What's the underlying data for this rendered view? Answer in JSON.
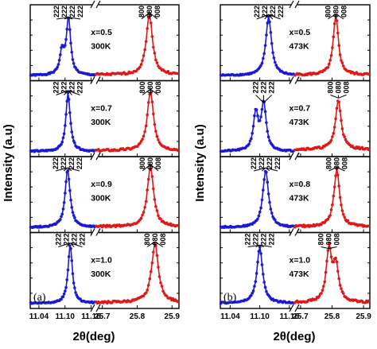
{
  "chart_data": {
    "type": "line",
    "ylabel": "Intensity (a.u)",
    "colors": {
      "low_2theta": "#1a1ad6",
      "high_2theta": "#e01818"
    },
    "panels": [
      {
        "tag": "(a)",
        "xlabel": "2θ(deg)",
        "x_segments": [
          {
            "range": [
              11.02,
              11.17
            ],
            "ticks": [
              "11.04",
              "11.10",
              "11.16"
            ],
            "tick_values": [
              11.04,
              11.1,
              11.16
            ]
          },
          {
            "range": [
              25.68,
              25.92
            ],
            "ticks": [
              "25.7",
              "25.8",
              "25.9"
            ],
            "tick_values": [
              25.7,
              25.8,
              25.9
            ]
          }
        ],
        "subplots": [
          {
            "composition": "x=0.5",
            "temperature": "300K",
            "blue_peaks": [
              {
                "center": 11.093,
                "height": 0.33,
                "width": 0.006
              },
              {
                "center": 11.108,
                "height": 0.82,
                "width": 0.006
              }
            ],
            "blue_baseline": 0.03,
            "red_peaks": [
              {
                "center": 25.835,
                "height": 0.88,
                "width": 0.011
              }
            ],
            "red_baseline": 0.04,
            "labels_left": [
              "222",
              "222",
              "222",
              "222"
            ],
            "labels_right": [
              "800",
              "080",
              "008"
            ]
          },
          {
            "composition": "x=0.7",
            "temperature": "300K",
            "blue_peaks": [
              {
                "center": 11.107,
                "height": 0.86,
                "width": 0.006
              }
            ],
            "blue_baseline": 0.03,
            "red_peaks": [
              {
                "center": 25.838,
                "height": 0.87,
                "width": 0.011
              }
            ],
            "red_baseline": 0.04,
            "labels_left": [
              "222",
              "222",
              "222",
              "222"
            ],
            "labels_right": [
              "800",
              "080",
              "008"
            ]
          },
          {
            "composition": "x=0.9",
            "temperature": "300K",
            "blue_peaks": [
              {
                "center": 11.106,
                "height": 0.84,
                "width": 0.007
              }
            ],
            "blue_baseline": 0.03,
            "red_peaks": [
              {
                "center": 25.838,
                "height": 0.88,
                "width": 0.011
              }
            ],
            "red_baseline": 0.04,
            "labels_left": [
              "222",
              "222",
              "222",
              "222"
            ],
            "labels_right": [
              "800",
              "080",
              "008"
            ]
          },
          {
            "composition": "x=1.0",
            "temperature": "300K",
            "blue_peaks": [
              {
                "center": 11.112,
                "height": 0.85,
                "width": 0.006
              }
            ],
            "blue_baseline": 0.03,
            "red_peaks": [
              {
                "center": 25.851,
                "height": 0.86,
                "width": 0.012
              }
            ],
            "red_baseline": 0.04,
            "labels_left": [
              "222",
              "222",
              "222",
              "222"
            ],
            "labels_right": [
              "800",
              "080",
              "008"
            ]
          }
        ]
      },
      {
        "tag": "(b)",
        "xlabel": "2θ(deg)",
        "x_segments": [
          {
            "range": [
              11.02,
              11.17
            ],
            "ticks": [
              "11.04",
              "11.10",
              "11.16"
            ],
            "tick_values": [
              11.04,
              11.1,
              11.16
            ]
          },
          {
            "range": [
              25.68,
              25.92
            ],
            "ticks": [
              "25.7",
              "25.8",
              "25.9"
            ],
            "tick_values": [
              25.7,
              25.8,
              25.9
            ]
          }
        ],
        "subplots": [
          {
            "composition": "x=0.5",
            "temperature": "473K",
            "blue_peaks": [
              {
                "center": 11.118,
                "height": 0.86,
                "width": 0.007
              }
            ],
            "blue_baseline": 0.03,
            "red_peaks": [
              {
                "center": 25.812,
                "height": 0.86,
                "width": 0.01
              }
            ],
            "red_baseline": 0.04,
            "labels_left": [
              "222",
              "222",
              "222",
              "222"
            ],
            "labels_right": [
              "800",
              "080",
              "008"
            ]
          },
          {
            "composition": "x=0.7",
            "temperature": "473K",
            "blue_peaks": [
              {
                "center": 11.092,
                "height": 0.55,
                "width": 0.006
              },
              {
                "center": 11.108,
                "height": 0.68,
                "width": 0.006
              }
            ],
            "blue_baseline": 0.03,
            "red_peaks": [
              {
                "center": 25.82,
                "height": 0.72,
                "width": 0.011
              }
            ],
            "red_baseline": 0.06,
            "labels_left": [
              "222",
              "222",
              "222"
            ],
            "labels_right": [
              "800",
              "080",
              "008"
            ]
          },
          {
            "composition": "x=0.8",
            "temperature": "473K",
            "blue_peaks": [
              {
                "center": 11.112,
                "height": 0.84,
                "width": 0.007
              }
            ],
            "blue_baseline": 0.03,
            "red_peaks": [
              {
                "center": 25.815,
                "height": 0.84,
                "width": 0.011
              }
            ],
            "red_baseline": 0.04,
            "labels_left": [
              "222",
              "222",
              "222",
              "222"
            ],
            "labels_right": [
              "800",
              "080",
              "008"
            ]
          },
          {
            "composition": "x=1.0",
            "temperature": "473K",
            "blue_peaks": [
              {
                "center": 11.1,
                "height": 0.82,
                "width": 0.007
              }
            ],
            "blue_baseline": 0.03,
            "red_peaks": [
              {
                "center": 25.79,
                "height": 0.76,
                "width": 0.01
              },
              {
                "center": 25.812,
                "height": 0.52,
                "width": 0.011
              }
            ],
            "red_baseline": 0.04,
            "labels_left": [
              "222",
              "222",
              "222",
              "222"
            ],
            "labels_right": [
              "800",
              "080",
              "008"
            ]
          }
        ]
      }
    ]
  }
}
